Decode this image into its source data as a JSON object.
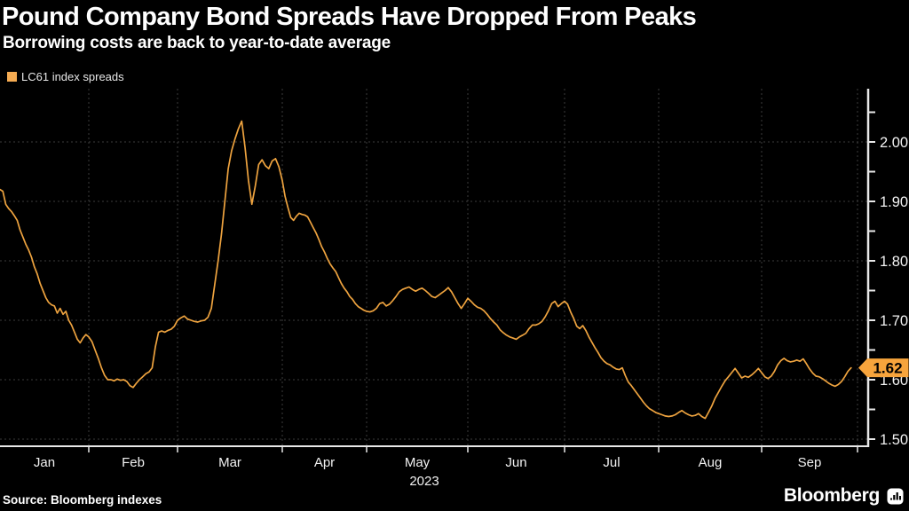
{
  "header": {
    "title": "Pound Company Bond Spreads Have Dropped From Peaks",
    "subtitle": "Borrowing costs are back to year-to-date average"
  },
  "legend": {
    "label": "LC61 index spreads"
  },
  "footer": {
    "source_label": "Source: Bloomberg indexes",
    "brand_label": "Bloomberg"
  },
  "colors": {
    "background": "#000000",
    "line": "#EEA33F",
    "legend_swatch": "#F5AB52",
    "badge_bg": "#F7A43C",
    "badge_text": "#000000",
    "grid": "#3C3C3C",
    "axis": "#E8E8E8",
    "tick_label": "#F2F2F2"
  },
  "chart_data": {
    "type": "line",
    "title": "Pound Company Bond Spreads Have Dropped From Peaks",
    "subtitle": "Borrowing costs are back to year-to-date average",
    "series_name": "LC61 index spreads",
    "year_label": "2023",
    "x_labels": [
      "Jan",
      "Feb",
      "Mar",
      "Apr",
      "May",
      "Jun",
      "Jul",
      "Aug",
      "Sep"
    ],
    "y_tick_labels": [
      "2.00",
      "1.90",
      "1.80",
      "1.70",
      "1.60",
      "1.50"
    ],
    "y_minor_step": 0.05,
    "ylim": [
      1.49,
      2.09
    ],
    "grid": true,
    "legend_position": "top-left",
    "last_value_label": "1.62",
    "last_value": 1.62,
    "peak_value": 2.035,
    "daily_values_by_month": {
      "Jan": [
        1.92,
        1.917,
        1.895,
        1.888,
        1.883,
        1.876,
        1.868,
        1.852,
        1.84,
        1.828,
        1.818,
        1.806,
        1.79,
        1.778,
        1.762,
        1.75,
        1.738,
        1.73,
        1.726,
        1.724,
        1.712,
        1.72,
        1.71,
        1.715,
        1.7,
        1.692,
        1.68,
        1.668,
        1.662,
        1.67,
        1.676
      ],
      "Feb": [
        1.672,
        1.664,
        1.65,
        1.636,
        1.62,
        1.607,
        1.6,
        1.6,
        1.598,
        1.601,
        1.599,
        1.6,
        1.597,
        1.59,
        1.587,
        1.594,
        1.6,
        1.605,
        1.61,
        1.613,
        1.62,
        1.655,
        1.68,
        1.682,
        1.68,
        1.683,
        1.685,
        1.69
      ],
      "Mar": [
        1.7,
        1.704,
        1.707,
        1.702,
        1.7,
        1.698,
        1.697,
        1.699,
        1.7,
        1.705,
        1.72,
        1.76,
        1.8,
        1.845,
        1.9,
        1.955,
        1.985,
        2.005,
        2.022,
        2.035,
        1.99,
        1.935,
        1.895,
        1.925,
        1.962,
        1.97,
        1.96,
        1.955,
        1.968,
        1.972,
        1.958
      ],
      "Apr": [
        1.935,
        1.908,
        1.89,
        1.873,
        1.868,
        1.875,
        1.88,
        1.878,
        1.877,
        1.874,
        1.865,
        1.856,
        1.847,
        1.836,
        1.824,
        1.815,
        1.804,
        1.795,
        1.788,
        1.782,
        1.772,
        1.762,
        1.754,
        1.748,
        1.74,
        1.735,
        1.728,
        1.723,
        1.72,
        1.717
      ],
      "May": [
        1.715,
        1.714,
        1.716,
        1.72,
        1.728,
        1.73,
        1.724,
        1.727,
        1.733,
        1.74,
        1.748,
        1.752,
        1.754,
        1.756,
        1.752,
        1.749,
        1.752,
        1.754,
        1.75,
        1.745,
        1.74,
        1.738,
        1.742,
        1.746,
        1.75,
        1.755,
        1.748,
        1.738,
        1.728,
        1.72,
        1.728
      ],
      "Jun": [
        1.737,
        1.732,
        1.726,
        1.722,
        1.72,
        1.716,
        1.71,
        1.703,
        1.697,
        1.692,
        1.684,
        1.679,
        1.675,
        1.672,
        1.67,
        1.668,
        1.672,
        1.675,
        1.678,
        1.686,
        1.692,
        1.692,
        1.694,
        1.698,
        1.706,
        1.716,
        1.728,
        1.732,
        1.723,
        1.728
      ],
      "Jul": [
        1.732,
        1.727,
        1.714,
        1.703,
        1.69,
        1.686,
        1.691,
        1.683,
        1.672,
        1.663,
        1.654,
        1.646,
        1.637,
        1.631,
        1.627,
        1.625,
        1.621,
        1.618,
        1.617,
        1.62,
        1.607,
        1.596,
        1.59,
        1.583,
        1.576,
        1.569,
        1.562,
        1.556,
        1.551,
        1.548,
        1.545
      ],
      "Aug": [
        1.543,
        1.541,
        1.539,
        1.538,
        1.539,
        1.541,
        1.545,
        1.548,
        1.544,
        1.541,
        1.539,
        1.54,
        1.543,
        1.538,
        1.535,
        1.545,
        1.556,
        1.569,
        1.579,
        1.589,
        1.598,
        1.605,
        1.612,
        1.619,
        1.611,
        1.603,
        1.606,
        1.604,
        1.608,
        1.613,
        1.619
      ],
      "Sep": [
        1.612,
        1.605,
        1.602,
        1.606,
        1.614,
        1.625,
        1.632,
        1.636,
        1.632,
        1.63,
        1.631,
        1.633,
        1.631,
        1.635,
        1.627,
        1.618,
        1.611,
        1.606,
        1.605,
        1.602,
        1.598,
        1.594,
        1.591,
        1.589,
        1.592,
        1.597,
        1.605,
        1.614,
        1.62
      ]
    }
  }
}
